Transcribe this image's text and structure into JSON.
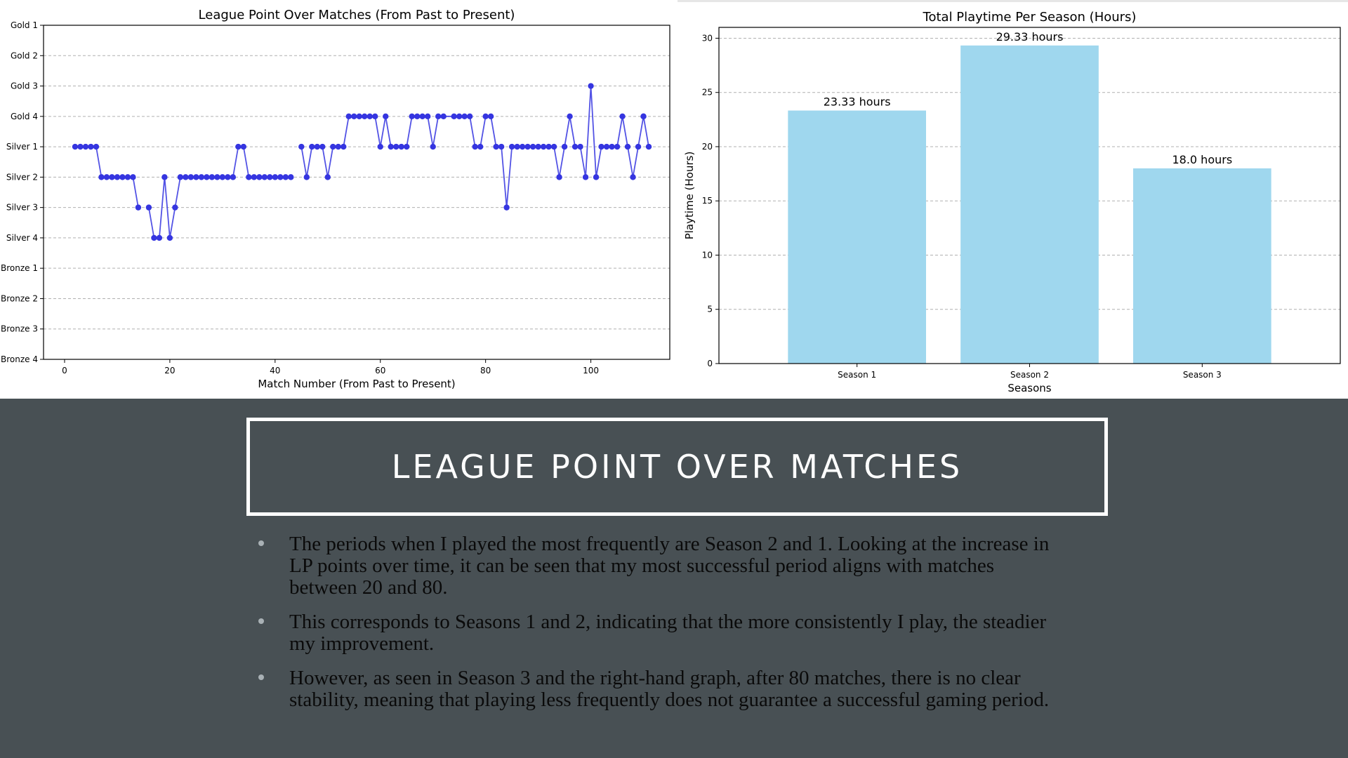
{
  "slide": {
    "title": "LEAGUE POINT OVER MATCHES",
    "bullets": [
      "The periods when I played the most frequently are Season 2 and 1. Looking at the increase in LP points over time, it can be seen that my most successful period aligns with matches between 20 and 80.",
      "This corresponds to Seasons 1 and 2, indicating that the more consistently I play, the steadier my improvement.",
      "However, as seen in Season 3 and the right-hand graph, after 80 matches, there is no clear stability, meaning that playing less frequently does not guarantee a successful gaming period."
    ]
  },
  "colors": {
    "background": "#485054",
    "line": "#3535e0",
    "bar": "#9fd7ee",
    "title_border": "#ffffff"
  },
  "chart_data": [
    {
      "type": "line",
      "title": "League Point Over Matches (From Past to Present)",
      "xlabel": "Match Number (From Past to Present)",
      "ylabel": "",
      "xlim": [
        -4,
        115
      ],
      "xticks": [
        0,
        20,
        40,
        60,
        80,
        100
      ],
      "y_categories": [
        "Gold 1",
        "Gold 2",
        "Gold 3",
        "Gold 4",
        "Silver 1",
        "Silver 2",
        "Silver 3",
        "Silver 4",
        "Bronze 1",
        "Bronze 2",
        "Bronze 3",
        "Bronze 4"
      ],
      "grid": true,
      "segments": [
        {
          "x": [
            2,
            3,
            4,
            5,
            6,
            7,
            8,
            9,
            10,
            11,
            12,
            13,
            14
          ],
          "y": [
            "Silver 1",
            "Silver 1",
            "Silver 1",
            "Silver 1",
            "Silver 1",
            "Silver 2",
            "Silver 2",
            "Silver 2",
            "Silver 2",
            "Silver 2",
            "Silver 2",
            "Silver 2",
            "Silver 3"
          ]
        },
        {
          "x": [
            16,
            17,
            18,
            19,
            20,
            21,
            22,
            23,
            24,
            25,
            26,
            27,
            28,
            29,
            30,
            31,
            32,
            33,
            34,
            35,
            36,
            37,
            38,
            39,
            40,
            41,
            42,
            43
          ],
          "y": [
            "Silver 3",
            "Silver 4",
            "Silver 4",
            "Silver 2",
            "Silver 4",
            "Silver 3",
            "Silver 2",
            "Silver 2",
            "Silver 2",
            "Silver 2",
            "Silver 2",
            "Silver 2",
            "Silver 2",
            "Silver 2",
            "Silver 2",
            "Silver 2",
            "Silver 2",
            "Silver 1",
            "Silver 1",
            "Silver 2",
            "Silver 2",
            "Silver 2",
            "Silver 2",
            "Silver 2",
            "Silver 2",
            "Silver 2",
            "Silver 2",
            "Silver 2"
          ]
        },
        {
          "x": [
            45,
            46,
            47,
            48,
            49,
            50,
            51,
            52,
            53,
            54,
            55,
            56,
            57,
            58,
            59,
            60,
            61,
            62,
            63,
            64,
            65,
            66,
            67,
            68,
            69,
            70,
            71
          ],
          "y": [
            "Silver 1",
            "Silver 2",
            "Silver 1",
            "Silver 1",
            "Silver 1",
            "Silver 2",
            "Silver 1",
            "Silver 1",
            "Silver 1",
            "Gold 4",
            "Gold 4",
            "Gold 4",
            "Gold 4",
            "Gold 4",
            "Gold 4",
            "Silver 1",
            "Gold 4",
            "Silver 1",
            "Silver 1",
            "Silver 1",
            "Silver 1",
            "Gold 4",
            "Gold 4",
            "Gold 4",
            "Gold 4",
            "Silver 1",
            "Gold 4"
          ]
        },
        {
          "x": [
            72,
            74,
            75,
            76,
            77,
            78,
            79,
            80,
            81,
            82,
            83,
            84,
            85,
            86,
            87,
            88,
            89,
            90,
            91,
            92,
            93,
            94,
            95,
            96,
            97,
            98,
            99,
            100,
            101,
            102,
            103,
            104,
            105,
            106,
            107,
            108,
            109,
            110
          ],
          "y": [
            "Gold 4",
            "Gold 4",
            "Gold 4",
            "Gold 4",
            "Gold 4",
            "Silver 1",
            "Silver 1",
            "Gold 4",
            "Gold 4",
            "Silver 1",
            "Silver 1",
            "Silver 3",
            "Silver 1",
            "Silver 1",
            "Silver 1",
            "Silver 1",
            "Silver 1",
            "Silver 1",
            "Silver 1",
            "Silver 1",
            "Silver 1",
            "Silver 2",
            "Silver 1",
            "Gold 4",
            "Silver 1",
            "Silver 1",
            "Silver 2",
            "Gold 3",
            "Silver 2",
            "Silver 1",
            "Silver 1",
            "Silver 1",
            "Silver 1",
            "Gold 4",
            "Silver 1",
            "Silver 2",
            "Silver 1",
            "Gold 4"
          ]
        },
        {
          "x": [
            110,
            111
          ],
          "y": [
            "Gold 4",
            "Silver 1"
          ]
        }
      ]
    },
    {
      "type": "bar",
      "title": "Total Playtime Per Season (Hours)",
      "xlabel": "Seasons",
      "ylabel": "Playtime (Hours)",
      "categories": [
        "Season 1",
        "Season 2",
        "Season 3"
      ],
      "values": [
        23.33,
        29.33,
        18.0
      ],
      "data_labels": [
        "23.33 hours",
        "29.33 hours",
        "18.0 hours"
      ],
      "ylim": [
        0,
        31
      ],
      "yticks": [
        0,
        5,
        10,
        15,
        20,
        25,
        30
      ],
      "grid": true
    }
  ]
}
